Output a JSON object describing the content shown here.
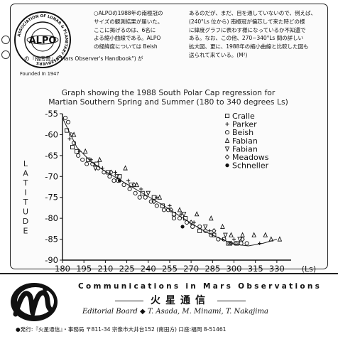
{
  "seal": {
    "ring_text": "ASSOCIATION OF LUNAR & PLANETARY OBSERVERS",
    "center_text": "ALPO",
    "founded": "Founded In 1947"
  },
  "intro": {
    "left_lines": [
      "○ALPOの1988年の南極冠の",
      "サイズの観測結果が届いた。",
      "ここに掲げるのは、6名に",
      "よる縮小曲線である。ALPO",
      "の経緯度については Beish",
      "の『指南書』(\"Mars Observer's Handbook\") が"
    ],
    "right_lines": [
      "あるのだが、まだ、目を通していないので、例えば、",
      "(240°Ls 位から) 南極冠が偏芯して来た時どの様",
      "に緯度グラフに表わす様になっているか不知還で",
      "ある。なお、この他、270−340°Ls 間の詳しい",
      "拡大図、更に、1988年の縮小曲線と比較した図も",
      "送られて来ている。(M²)"
    ]
  },
  "chart_data": {
    "type": "scatter",
    "title": "Graph showing the 1988 South Polar Cap regression for",
    "subtitle": "Martian Southern Spring and Summer   (180 to 340 degrees Ls)",
    "xlabel": "(Ls)",
    "ylabel": "LATITUDE",
    "xlim": [
      180,
      340
    ],
    "ylim": [
      -90,
      -55
    ],
    "xticks": [
      "180",
      "195",
      "210",
      "225",
      "240",
      "255",
      "270",
      "285",
      "300",
      "315",
      "330"
    ],
    "yticks": [
      "-55",
      "-60",
      "-65",
      "-70",
      "-75",
      "-80",
      "-85",
      "-90"
    ],
    "legend_position": "top-right",
    "series": [
      {
        "name": "Cralle",
        "marker": "square",
        "points": [
          [
            183,
            -59
          ],
          [
            187,
            -63
          ],
          [
            190,
            -64
          ],
          [
            198,
            -66
          ],
          [
            204,
            -67
          ],
          [
            212,
            -69
          ],
          [
            220,
            -70
          ],
          [
            228,
            -72
          ],
          [
            236,
            -74
          ],
          [
            244,
            -75
          ],
          [
            250,
            -77
          ],
          [
            258,
            -79
          ],
          [
            266,
            -80
          ],
          [
            276,
            -83
          ],
          [
            286,
            -84
          ],
          [
            296,
            -86
          ],
          [
            302,
            -86
          ]
        ]
      },
      {
        "name": "Parker",
        "marker": "plus",
        "points": [
          [
            185,
            -61
          ],
          [
            192,
            -64
          ],
          [
            200,
            -66
          ],
          [
            208,
            -68
          ],
          [
            217,
            -69
          ],
          [
            226,
            -71
          ],
          [
            235,
            -73
          ],
          [
            246,
            -75
          ],
          [
            255,
            -77
          ],
          [
            263,
            -79
          ],
          [
            272,
            -81
          ],
          [
            283,
            -83
          ],
          [
            292,
            -85
          ],
          [
            300,
            -85
          ],
          [
            318,
            -86
          ]
        ]
      },
      {
        "name": "Beish",
        "marker": "circle",
        "points": [
          [
            182,
            -56
          ],
          [
            184,
            -57
          ],
          [
            186,
            -60
          ],
          [
            188,
            -62
          ],
          [
            191,
            -65
          ],
          [
            194,
            -66
          ],
          [
            197,
            -67
          ],
          [
            201,
            -67
          ],
          [
            205,
            -68
          ],
          [
            209,
            -69
          ],
          [
            213,
            -70
          ],
          [
            216,
            -71
          ],
          [
            219,
            -71
          ],
          [
            223,
            -72
          ],
          [
            227,
            -73
          ],
          [
            231,
            -74
          ],
          [
            234,
            -75
          ],
          [
            238,
            -75
          ],
          [
            242,
            -76
          ],
          [
            246,
            -77
          ],
          [
            251,
            -78
          ],
          [
            254,
            -78
          ],
          [
            258,
            -80
          ],
          [
            262,
            -80
          ],
          [
            267,
            -81
          ],
          [
            271,
            -82
          ],
          [
            276,
            -82
          ],
          [
            280,
            -83
          ],
          [
            284,
            -84
          ],
          [
            289,
            -85
          ],
          [
            293,
            -85
          ],
          [
            297,
            -86
          ],
          [
            301,
            -86
          ],
          [
            305,
            -86
          ],
          [
            309,
            -86
          ]
        ]
      },
      {
        "name": "Fabian",
        "marker": "triangle-up",
        "points": [
          [
            188,
            -60
          ],
          [
            196,
            -64
          ],
          [
            206,
            -66
          ],
          [
            224,
            -68
          ],
          [
            232,
            -72
          ],
          [
            248,
            -75
          ],
          [
            262,
            -78
          ],
          [
            274,
            -79
          ],
          [
            284,
            -80
          ],
          [
            292,
            -82
          ],
          [
            298,
            -84
          ],
          [
            306,
            -84
          ],
          [
            314,
            -84
          ],
          [
            322,
            -84
          ],
          [
            326,
            -85
          ],
          [
            332,
            -85
          ]
        ]
      },
      {
        "name": "Fabian",
        "marker": "triangle-down",
        "points": [
          [
            203,
            -68
          ],
          [
            218,
            -70
          ],
          [
            240,
            -74
          ],
          [
            265,
            -79
          ],
          [
            280,
            -82
          ],
          [
            294,
            -84
          ],
          [
            304,
            -85
          ]
        ]
      },
      {
        "name": "Meadows",
        "marker": "diamond",
        "points": [
          [
            214,
            -69
          ],
          [
            230,
            -72
          ],
          [
            244,
            -76
          ],
          [
            256,
            -78
          ],
          [
            270,
            -81
          ],
          [
            286,
            -83
          ],
          [
            298,
            -86
          ],
          [
            306,
            -85
          ]
        ]
      },
      {
        "name": "Schneller",
        "marker": "filled-circle",
        "points": [
          [
            220,
            -71
          ],
          [
            264,
            -82
          ]
        ]
      }
    ],
    "trend_line": [
      [
        180,
        -56
      ],
      [
        190,
        -63
      ],
      [
        200,
        -66.5
      ],
      [
        210,
        -68.8
      ],
      [
        220,
        -70.8
      ],
      [
        230,
        -72.8
      ],
      [
        240,
        -74.8
      ],
      [
        250,
        -76.8
      ],
      [
        260,
        -79
      ],
      [
        270,
        -81.2
      ],
      [
        280,
        -83.2
      ],
      [
        290,
        -84.8
      ],
      [
        300,
        -86.2
      ],
      [
        310,
        -86.6
      ],
      [
        320,
        -86
      ],
      [
        330,
        -85
      ]
    ]
  },
  "footer": {
    "series_title": "Communications in Mars Observations",
    "japanese_title": "火星通信",
    "editorial": "Editorial Board   ◆ T. Asada, M. Minami, T. Nakajima",
    "publisher": "●発行:『火星通信』・事務局 〒811-34 宗像市大井台152 (南田方)     口座:福岡 8-51461"
  },
  "colors": {
    "ink": "#111111",
    "paper": "#ffffff"
  }
}
